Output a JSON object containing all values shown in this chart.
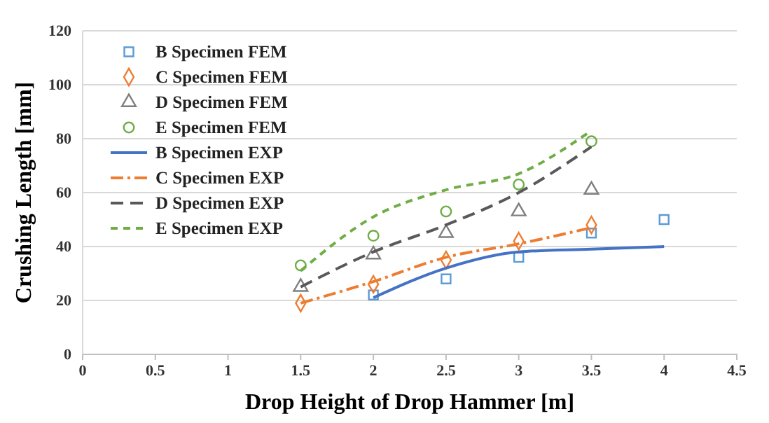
{
  "chart_data": {
    "type": "line",
    "xlabel": "Drop Height of Drop Hammer [m]",
    "ylabel": "Crushing Length [mm]",
    "xlim": [
      0,
      4.5
    ],
    "xticks": [
      0,
      0.5,
      1,
      1.5,
      2,
      2.5,
      3,
      3.5,
      4,
      4.5
    ],
    "ylim": [
      0,
      120
    ],
    "yticks": [
      0,
      20,
      40,
      60,
      80,
      100,
      120
    ],
    "grid": "y",
    "legend": "top left",
    "series": [
      {
        "name": "B Specimen FEM",
        "type": "scatter",
        "marker": "square",
        "color": "#5b9bd5",
        "x": [
          2,
          2.5,
          3,
          3.5,
          4
        ],
        "values": [
          22,
          28,
          36,
          45,
          50
        ]
      },
      {
        "name": "C Specimen FEM",
        "type": "scatter",
        "marker": "diamond",
        "color": "#ed7d31",
        "x": [
          1.5,
          2,
          2.5,
          3,
          3.5
        ],
        "values": [
          19,
          26,
          35,
          42,
          48
        ]
      },
      {
        "name": "D Specimen FEM",
        "type": "scatter",
        "marker": "triangle",
        "color": "#7f7f7f",
        "x": [
          1.5,
          2,
          2.5,
          3,
          3.5
        ],
        "values": [
          25,
          37,
          45,
          53,
          61
        ]
      },
      {
        "name": "E Specimen FEM",
        "type": "scatter",
        "marker": "circle",
        "color": "#70ad47",
        "x": [
          1.5,
          2,
          2.5,
          3,
          3.5
        ],
        "values": [
          33,
          44,
          53,
          63,
          79
        ]
      },
      {
        "name": "B Specimen EXP",
        "line_style": "solid",
        "color": "#4472c4",
        "x": [
          2,
          2.5,
          3,
          3.5,
          4
        ],
        "values": [
          21,
          32,
          38,
          39,
          40
        ]
      },
      {
        "name": "C Specimen EXP",
        "line_style": "dashdot",
        "color": "#ed7d31",
        "x": [
          1.5,
          2,
          2.5,
          3,
          3.5
        ],
        "values": [
          19,
          27,
          36,
          41,
          47
        ]
      },
      {
        "name": "D Specimen EXP",
        "line_style": "dashed",
        "color": "#595959",
        "x": [
          1.5,
          2,
          2.5,
          3,
          3.5
        ],
        "values": [
          25,
          38,
          48,
          60,
          77
        ]
      },
      {
        "name": "E Specimen EXP",
        "line_style": "dotted",
        "color": "#70ad47",
        "x": [
          1.5,
          2,
          2.5,
          3,
          3.5
        ],
        "values": [
          31,
          51,
          61,
          67,
          83
        ]
      }
    ]
  }
}
